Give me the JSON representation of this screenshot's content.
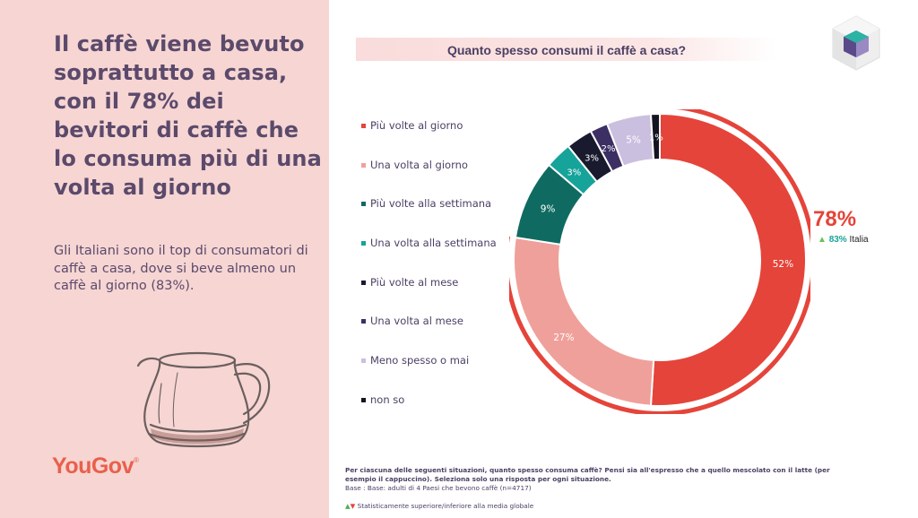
{
  "headline": "Il caffè viene bevuto soprattutto a casa, con il 78% dei bevitori di caffè che lo consuma più di una volta al giorno",
  "subtext": "Gli Italiani sono il top di consumatori di caffè a casa, dove si beve almeno un caffè al giorno (83%).",
  "brand": {
    "logo_text": "YouGov",
    "logo_mark": "®"
  },
  "chart_data": {
    "type": "pie",
    "title": "Quanto spesso consumi il caffè a casa?",
    "categories": [
      "Più volte al giorno",
      "Una volta al giorno",
      "Più volte alla settimana",
      "Una volta alla settimana",
      "Più volte al mese",
      "Una volta al mese",
      "Meno spesso o mai",
      "non so"
    ],
    "values": [
      52,
      27,
      9,
      3,
      3,
      2,
      5,
      1
    ],
    "value_labels": [
      "52%",
      "27%",
      "9%",
      "3%",
      "3%",
      "2%",
      "5%",
      "1%"
    ],
    "colors": [
      "#e5443a",
      "#f0a09a",
      "#0f6b62",
      "#16a39a",
      "#1a1a2e",
      "#3c2f63",
      "#cbbfe0",
      "#141422"
    ],
    "label_colors": [
      "#ffffff",
      "#ffffff",
      "#ffffff",
      "#ffffff",
      "#ffffff",
      "#ffffff",
      "#ffffff",
      "#ffffff"
    ],
    "style": "donut",
    "legend_position": "left",
    "highlight": {
      "value_label": "78%",
      "compare_label": "83%",
      "compare_region": "Italia",
      "compare_direction": "up"
    }
  },
  "footnote": {
    "question": "Per ciascuna delle seguenti situazioni, quanto spesso consuma caffè? Pensi sia all'espresso che a quello mescolato con il latte (per esempio il cappuccino). Seleziona solo una risposta per ogni situazione.",
    "base": "Base : Base: adulti di 4 Paesi che bevono caffè (n=4717)",
    "significance": "Statisticamente superiore/inferiore alla media globale"
  },
  "icons": {
    "logo_cube": "cube-logo-icon",
    "kettle": "coffee-pot-illustration",
    "up": "triangle-up-icon",
    "down": "triangle-down-icon"
  }
}
